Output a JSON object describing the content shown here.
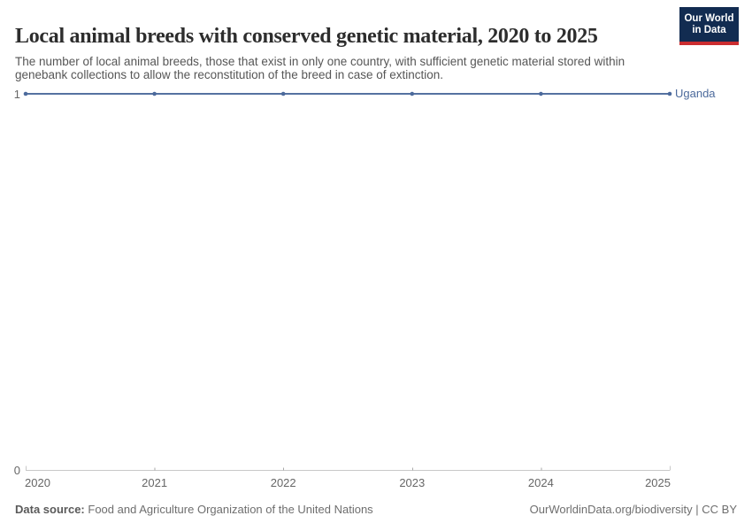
{
  "header": {
    "title": "Local animal breeds with conserved genetic material, 2020 to 2025",
    "subtitle": "The number of local animal breeds, those that exist in only one country, with sufficient genetic material stored within genebank collections to allow the reconstitution of the breed in case of extinction.",
    "logo": {
      "line1": "Our World",
      "line2": "in Data"
    }
  },
  "chart_data": {
    "type": "line",
    "title": "Local animal breeds with conserved genetic material, 2020 to 2025",
    "x": [
      2020,
      2021,
      2022,
      2023,
      2024,
      2025
    ],
    "series": [
      {
        "name": "Uganda",
        "values": [
          1,
          1,
          1,
          1,
          1,
          1
        ],
        "color": "#4C6A9C"
      }
    ],
    "ylim": [
      0,
      1
    ],
    "yticks": [
      0,
      1
    ],
    "xticks": [
      2020,
      2021,
      2022,
      2023,
      2024,
      2025
    ],
    "grid": false,
    "legend_position": "end-of-line"
  },
  "footer": {
    "source_label": "Data source:",
    "source_value": "Food and Agriculture Organization of the United Nations",
    "attribution": "OurWorldinData.org/biodiversity | CC BY"
  },
  "colors": {
    "accent": "#4C6A9C",
    "axis_line": "#c8c8c8",
    "tick": "#aaaaaa",
    "axis_text": "#666666",
    "logo_bg": "#122c51",
    "logo_stripe": "#cb2d30"
  }
}
